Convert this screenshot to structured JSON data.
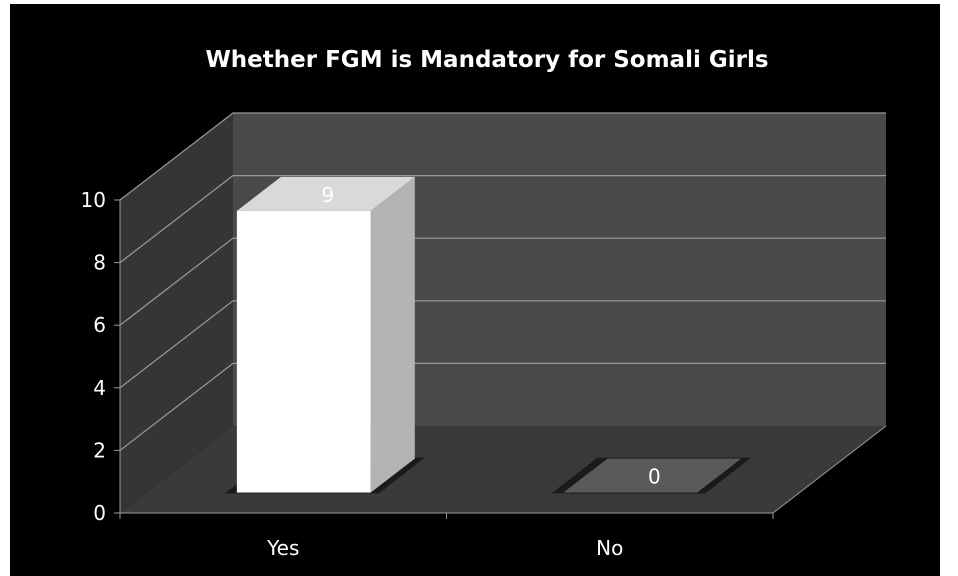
{
  "chart_data": {
    "type": "bar",
    "title": "Whether FGM is Mandatory for Somali Girls",
    "categories": [
      "Yes",
      "No"
    ],
    "values": [
      9,
      0
    ],
    "data_labels": [
      "9",
      "0"
    ],
    "y_ticks": [
      "0",
      "2",
      "4",
      "6",
      "8",
      "10"
    ],
    "ylim": [
      0,
      10
    ],
    "xlabel": "",
    "ylabel": "",
    "grid": true,
    "legend": "none",
    "style": "3d-column",
    "colors": {
      "background": "#000000",
      "back_wall": "#4a4a4a",
      "side_wall": "#353535",
      "floor": "#3a3a3a",
      "gridline": "#9a9a9a",
      "bar_front": "#ffffff",
      "bar_top": "#d9d9d9",
      "bar_side": "#b3b3b3",
      "text": "#ffffff"
    }
  }
}
